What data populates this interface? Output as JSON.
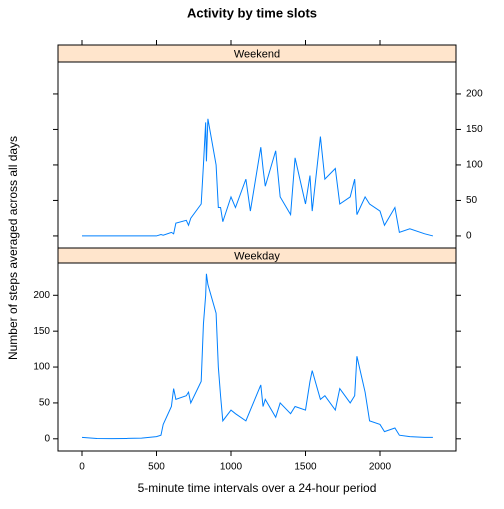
{
  "chart_data": {
    "type": "line",
    "title": "Activity by time slots",
    "x_label": "5-minute time intervals over a 24-hour period",
    "y_label": "Number of steps averaged across all days",
    "xlim": [
      -161,
      2510
    ],
    "xticks": [
      0,
      500,
      1000,
      1500,
      2000
    ],
    "ylim": [
      -17,
      245
    ],
    "yticks": [
      0,
      50,
      100,
      150,
      200
    ],
    "strip_color": "#ffe5cc",
    "x": [
      0,
      100,
      200,
      300,
      400,
      500,
      530,
      545,
      600,
      615,
      630,
      700,
      715,
      730,
      800,
      815,
      830,
      835,
      845,
      900,
      915,
      930,
      945,
      1000,
      1030,
      1100,
      1130,
      1200,
      1215,
      1230,
      1300,
      1330,
      1400,
      1430,
      1500,
      1530,
      1545,
      1600,
      1630,
      1700,
      1730,
      1800,
      1830,
      1845,
      1900,
      1930,
      2000,
      2030,
      2100,
      2130,
      2200,
      2300,
      2355
    ],
    "series": [
      {
        "name": "Weekend",
        "color": "#0080ff",
        "values": [
          0,
          0,
          0,
          0,
          0,
          0,
          2,
          1,
          5,
          3,
          18,
          22,
          15,
          25,
          45,
          100,
          160,
          105,
          165,
          100,
          40,
          40,
          20,
          55,
          40,
          80,
          35,
          125,
          95,
          70,
          120,
          55,
          30,
          110,
          45,
          85,
          35,
          140,
          80,
          95,
          45,
          55,
          80,
          30,
          55,
          45,
          35,
          15,
          40,
          5,
          10,
          3,
          0
        ]
      },
      {
        "name": "Weekday",
        "color": "#0080ff",
        "values": [
          2,
          0.5,
          0.2,
          0.5,
          1,
          3,
          5,
          20,
          45,
          70,
          55,
          60,
          65,
          50,
          80,
          160,
          200,
          230,
          215,
          175,
          100,
          60,
          25,
          40,
          35,
          25,
          40,
          75,
          45,
          55,
          30,
          50,
          35,
          45,
          40,
          80,
          95,
          55,
          60,
          40,
          70,
          50,
          60,
          115,
          65,
          25,
          20,
          10,
          15,
          5,
          3,
          2,
          2
        ]
      }
    ]
  }
}
